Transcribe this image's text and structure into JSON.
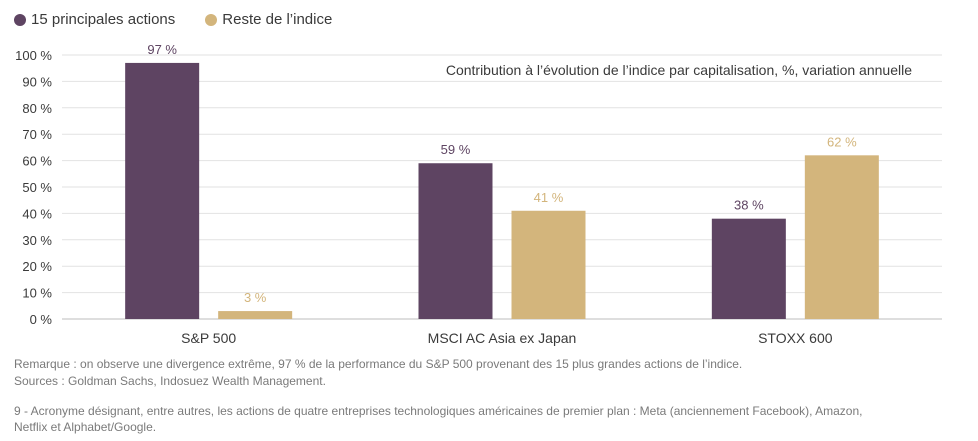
{
  "chart_data": {
    "type": "bar",
    "subtitle": "Contribution à l’évolution de l’indice par capitalisation, %, variation annuelle",
    "categories": [
      "S&P 500",
      "MSCI AC Asia ex Japan",
      "STOXX 600"
    ],
    "series": [
      {
        "name": "15 principales actions",
        "color": "#5e4462",
        "values": [
          97,
          59,
          38
        ],
        "labels": [
          "97 %",
          "59 %",
          "38 %"
        ]
      },
      {
        "name": "Reste de l’indice",
        "color": "#d3b57c",
        "values": [
          3,
          41,
          62
        ],
        "labels": [
          "3 %",
          "41 %",
          "62 %"
        ]
      }
    ],
    "ylim": [
      0,
      100
    ],
    "yticks": [
      0,
      10,
      20,
      30,
      40,
      50,
      60,
      70,
      80,
      90,
      100
    ],
    "ytick_labels": [
      "0 %",
      "10 %",
      "20 %",
      "30 %",
      "40 %",
      "50 %",
      "60 %",
      "70 %",
      "80 %",
      "90 %",
      "100 %"
    ],
    "grid": true,
    "legend": "top-left"
  },
  "notes": {
    "remark": "Remarque : on observe une divergence extrême, 97 % de la performance du S&P 500 provenant des 15 plus grandes actions de l’indice.",
    "sources": "Sources : Goldman Sachs, Indosuez Wealth Management.",
    "footnote_line1": "9 - Acronyme désignant, entre autres, les actions de quatre entreprises technologiques américaines de premier plan : Meta (anciennement Facebook), Amazon,",
    "footnote_line2": "Netflix et Alphabet/Google."
  }
}
